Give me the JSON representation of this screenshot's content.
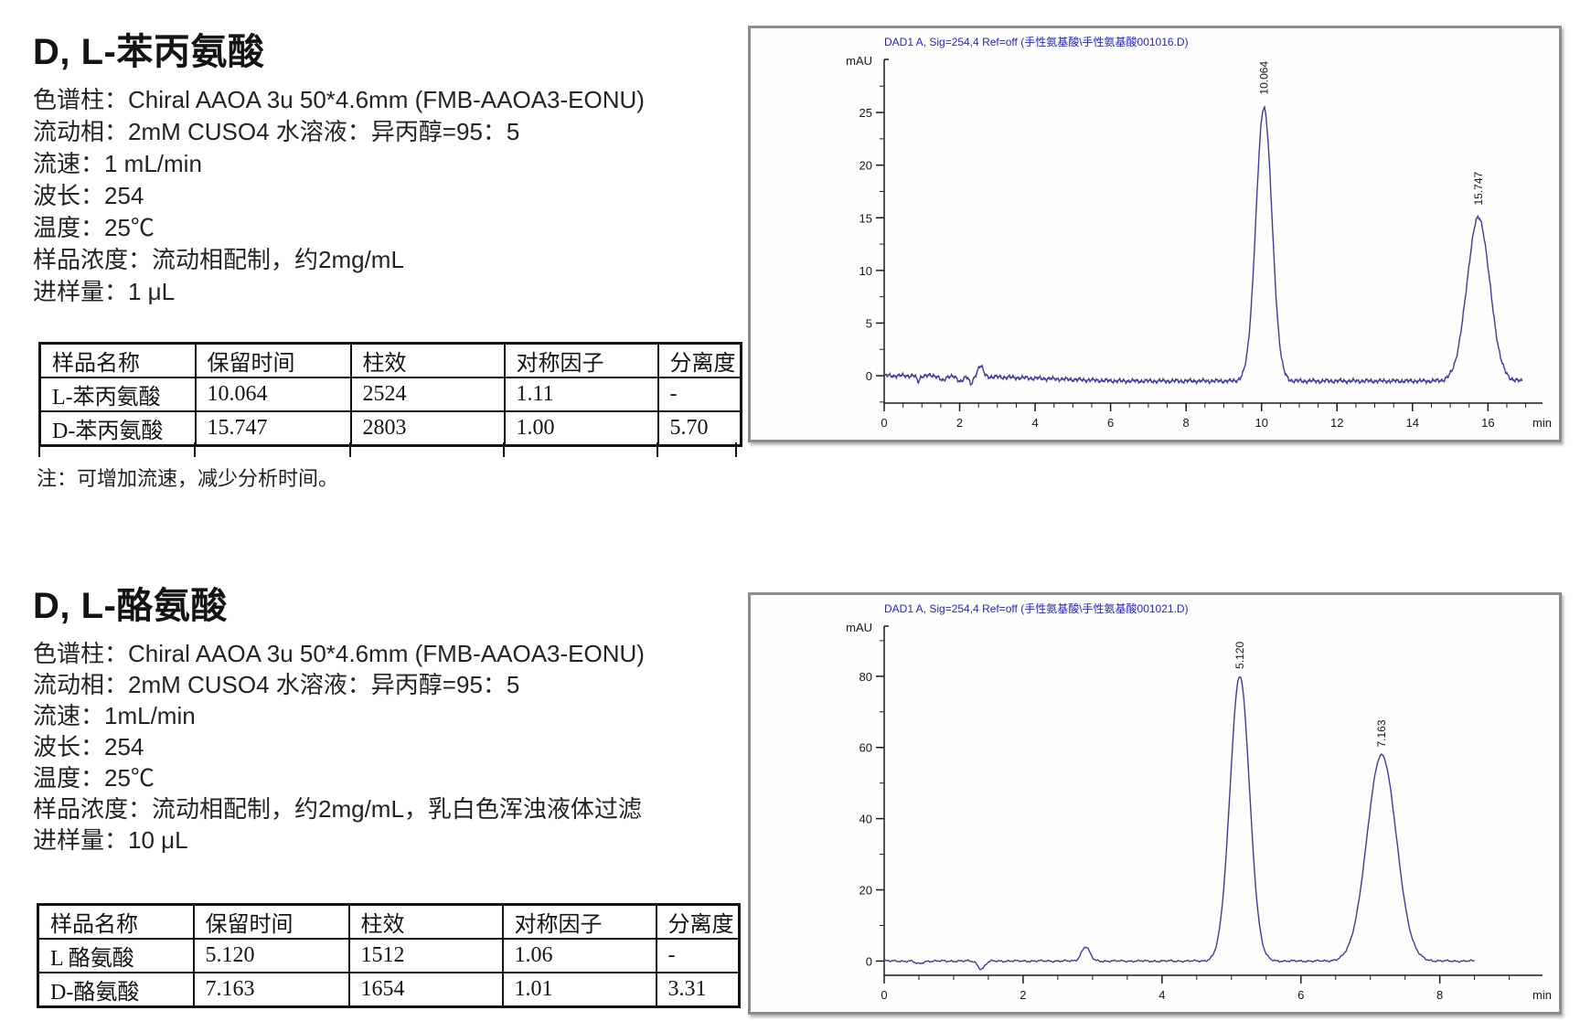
{
  "sections": [
    {
      "title": "D, L-苯丙氨酸",
      "conditions": [
        "色谱柱：Chiral AAOA 3u 50*4.6mm (FMB-AAOA3-EONU)",
        "流动相：2mM CUSO4 水溶液：异丙醇=95：5",
        "流速：1 mL/min",
        "波长：254",
        "温度：25℃",
        "样品浓度：流动相配制，约2mg/mL",
        "进样量：1 μL"
      ],
      "table": {
        "headers": [
          "样品名称",
          "保留时间",
          "柱效",
          "对称因子",
          "分离度"
        ],
        "rows": [
          [
            "L-苯丙氨酸",
            "10.064",
            "2524",
            "1.11",
            "-"
          ],
          [
            "D-苯丙氨酸",
            "15.747",
            "2803",
            "1.00",
            "5.70"
          ]
        ]
      },
      "note": "注：可增加流速，减少分析时间。"
    },
    {
      "title": "D, L-酪氨酸",
      "conditions": [
        "色谱柱：Chiral AAOA 3u 50*4.6mm (FMB-AAOA3-EONU)",
        "流动相：2mM CUSO4 水溶液：异丙醇=95：5",
        "流速：1mL/min",
        "波长：254",
        "温度：25℃",
        "样品浓度：流动相配制，约2mg/mL，乳白色浑浊液体过滤",
        "进样量：10 μL"
      ],
      "table": {
        "headers": [
          "样品名称",
          "保留时间",
          "柱效",
          "对称因子",
          "分离度"
        ],
        "rows": [
          [
            "L 酪氨酸",
            "5.120",
            "1512",
            "1.06",
            "-"
          ],
          [
            "D-酪氨酸",
            "7.163",
            "1654",
            "1.01",
            "3.31"
          ]
        ]
      }
    }
  ],
  "chart_data": [
    {
      "type": "line",
      "title": "DAD1 A, Sig=254,4 Ref=off (手性氨基酸\\手性氨基酸001016.D)",
      "xlabel": "min",
      "ylabel": "mAU",
      "xlim": [
        0,
        17.3
      ],
      "ylim": [
        -2.6,
        29
      ],
      "x_major_ticks": [
        0,
        2,
        4,
        6,
        8,
        10,
        12,
        14,
        16
      ],
      "x_minor_step": 0.5,
      "y_major_ticks": [
        0,
        5,
        10,
        15,
        20,
        25
      ],
      "y_minor_step": 2.5,
      "grid": false,
      "legend": false,
      "trace_end": 16.9,
      "peaks": [
        {
          "rt": 10.064,
          "height": 26.0,
          "sigma": 0.21,
          "label": "10.064"
        },
        {
          "rt": 15.747,
          "height": 15.5,
          "sigma": 0.3,
          "label": "15.747"
        }
      ],
      "artifacts": [
        {
          "rt": 0.9,
          "height": -0.55,
          "sigma": 0.04
        },
        {
          "rt": 1.55,
          "height": -0.5,
          "sigma": 0.07
        },
        {
          "rt": 2.0,
          "height": -0.55,
          "sigma": 0.08
        },
        {
          "rt": 2.3,
          "height": -0.8,
          "sigma": 0.05
        },
        {
          "rt": 2.55,
          "height": 1.0,
          "sigma": 0.07
        }
      ],
      "drift": {
        "start": 2,
        "slope": -0.12,
        "floor": -0.5
      },
      "noise_amplitude": 0.22,
      "colors": {
        "trace": "#3c3c9c",
        "title": "#2326be"
      }
    },
    {
      "type": "line",
      "title": "DAD1 A, Sig=254,4 Ref=off (手性氨基酸\\手性氨基酸001021.D)",
      "xlabel": "min",
      "ylabel": "mAU",
      "xlim": [
        0,
        9.4
      ],
      "ylim": [
        -4,
        91
      ],
      "x_major_ticks": [
        0,
        2,
        4,
        6,
        8
      ],
      "x_minor_step": 0.5,
      "y_major_ticks": [
        0,
        20,
        40,
        60,
        80
      ],
      "y_minor_step": 10,
      "grid": false,
      "legend": false,
      "trace_end": 8.5,
      "peaks": [
        {
          "rt": 5.12,
          "height": 80,
          "sigma": 0.14,
          "label": "5.120"
        },
        {
          "rt": 7.163,
          "height": 58,
          "sigma": 0.21,
          "label": "7.163"
        }
      ],
      "artifacts": [
        {
          "rt": 0.5,
          "height": -0.8,
          "sigma": 0.05
        },
        {
          "rt": 1.4,
          "height": -2.2,
          "sigma": 0.05
        },
        {
          "rt": 2.9,
          "height": 4.0,
          "sigma": 0.06
        }
      ],
      "drift": {
        "start": 0,
        "slope": 0,
        "floor": 0
      },
      "noise_amplitude": 0.3,
      "colors": {
        "trace": "#3c3c9c",
        "title": "#2326be"
      }
    }
  ]
}
